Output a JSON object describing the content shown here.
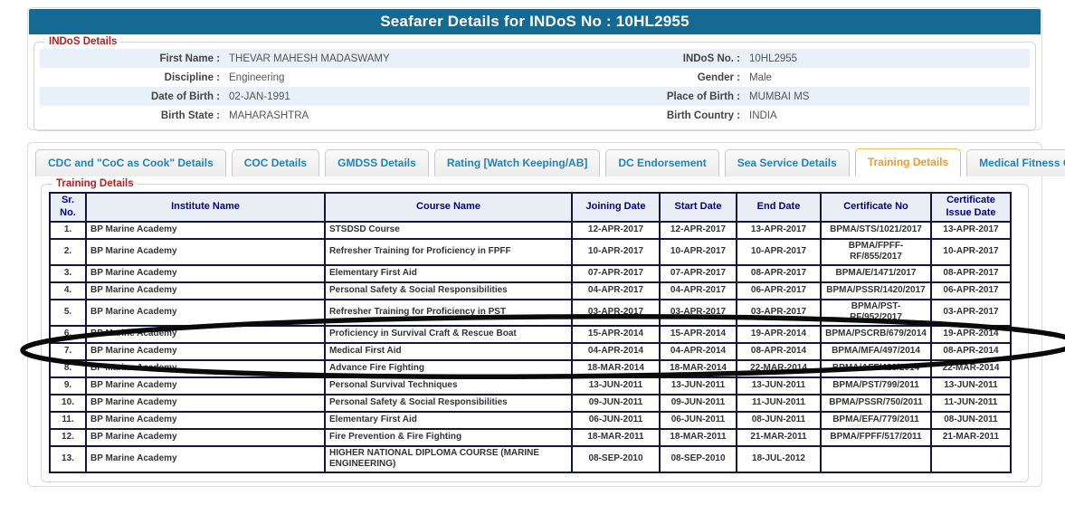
{
  "page": {
    "title": "Seafarer Details for INDoS No : 10HL2955"
  },
  "indos": {
    "legend": "INDoS Details",
    "rows": [
      {
        "label_left": "First Name :",
        "value_left": "THEVAR MAHESH MADASWAMY",
        "label_right": "INDoS No. :",
        "value_right": "10HL2955"
      },
      {
        "label_left": "Discipline :",
        "value_left": "Engineering",
        "label_right": "Gender :",
        "value_right": "Male"
      },
      {
        "label_left": "Date of Birth :",
        "value_left": "02-JAN-1991",
        "label_right": "Place of Birth :",
        "value_right": "MUMBAI MS"
      },
      {
        "label_left": "Birth State :",
        "value_left": "MAHARASHTRA",
        "label_right": "Birth Country :",
        "value_right": "INDIA"
      }
    ]
  },
  "tabs": [
    {
      "label": "CDC and \"CoC as Cook\" Details",
      "active": false
    },
    {
      "label": "COC Details",
      "active": false
    },
    {
      "label": "GMDSS Details",
      "active": false
    },
    {
      "label": "Rating [Watch Keeping/AB]",
      "active": false
    },
    {
      "label": "DC Endorsement",
      "active": false
    },
    {
      "label": "Sea Service Details",
      "active": false
    },
    {
      "label": "Training Details",
      "active": true
    },
    {
      "label": "Medical Fitness Certificate",
      "active": false
    }
  ],
  "training": {
    "legend": "Training Details",
    "columns": [
      "Sr. No.",
      "Institute Name",
      "Course Name",
      "Joining Date",
      "Start Date",
      "End Date",
      "Certificate No",
      "Certificate Issue Date"
    ],
    "rows": [
      [
        "1.",
        "BP Marine Academy",
        "STSDSD Course",
        "12-APR-2017",
        "12-APR-2017",
        "13-APR-2017",
        "BPMA/STS/1021/2017",
        "13-APR-2017"
      ],
      [
        "2.",
        "BP Marine Academy",
        "Refresher Training for Proficiency in FPFF",
        "10-APR-2017",
        "10-APR-2017",
        "10-APR-2017",
        "BPMA/FPFF-RF/855/2017",
        "10-APR-2017"
      ],
      [
        "3.",
        "BP Marine Academy",
        "Elementary First Aid",
        "07-APR-2017",
        "07-APR-2017",
        "08-APR-2017",
        "BPMA/E/1471/2017",
        "08-APR-2017"
      ],
      [
        "4.",
        "BP Marine Academy",
        "Personal Safety & Social Responsibilities",
        "04-APR-2017",
        "04-APR-2017",
        "06-APR-2017",
        "BPMA/PSSR/1420/2017",
        "06-APR-2017"
      ],
      [
        "5.",
        "BP Marine Academy",
        "Refresher Training for Proficiency in PST",
        "03-APR-2017",
        "03-APR-2017",
        "03-APR-2017",
        "BPMA/PST-RF/952/2017",
        "03-APR-2017"
      ],
      [
        "6.",
        "BP Marine Academy",
        "Proficiency in Survival Craft & Rescue Boat",
        "15-APR-2014",
        "15-APR-2014",
        "19-APR-2014",
        "BPMA/PSCRB/679/2014",
        "19-APR-2014"
      ],
      [
        "7.",
        "BP Marine Academy",
        "Medical First Aid",
        "04-APR-2014",
        "04-APR-2014",
        "08-APR-2014",
        "BPMA/MFA/497/2014",
        "08-APR-2014"
      ],
      [
        "8.",
        "BP Marine Academy",
        "Advance Fire Fighting",
        "18-MAR-2014",
        "18-MAR-2014",
        "22-MAR-2014",
        "BPMA/AFF/423/2014",
        "22-MAR-2014"
      ],
      [
        "9.",
        "BP Marine Academy",
        "Personal Survival Techniques",
        "13-JUN-2011",
        "13-JUN-2011",
        "13-JUN-2011",
        "BPMA/PST/799/2011",
        "13-JUN-2011"
      ],
      [
        "10.",
        "BP Marine Academy",
        "Personal Safety & Social Responsibilities",
        "09-JUN-2011",
        "09-JUN-2011",
        "11-JUN-2011",
        "BPMA/PSSR/750/2011",
        "11-JUN-2011"
      ],
      [
        "11.",
        "BP Marine Academy",
        "Elementary First Aid",
        "06-JUN-2011",
        "06-JUN-2011",
        "08-JUN-2011",
        "BPMA/EFA/779/2011",
        "08-JUN-2011"
      ],
      [
        "12.",
        "BP Marine Academy",
        "Fire Prevention & Fire Fighting",
        "18-MAR-2011",
        "18-MAR-2011",
        "21-MAR-2011",
        "BPMA/FPFF/517/2011",
        "21-MAR-2011"
      ],
      [
        "13.",
        "BP Marine Academy",
        "HIGHER NATIONAL DIPLOMA COURSE (MARINE ENGINEERING)",
        "08-SEP-2010",
        "08-SEP-2010",
        "18-JUL-2012",
        "",
        ""
      ]
    ]
  },
  "annotation": {
    "type": "hand-drawn-ellipse",
    "color": "#000000",
    "circled_rows": "6-8"
  },
  "colors": {
    "title_bar": "#146a92",
    "tab_text": "#2084b8",
    "active_tab_text": "#ef9b2d",
    "legend_red": "#b22222",
    "table_header_text": "#000080",
    "table_border": "#14143c",
    "alt_row": "#e8f1fa"
  }
}
